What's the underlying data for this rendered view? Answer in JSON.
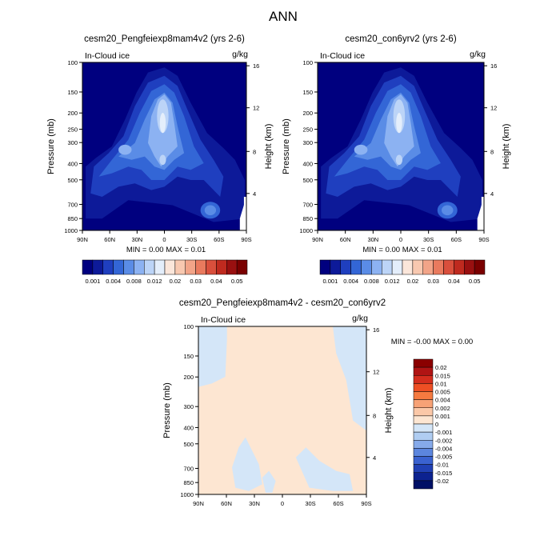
{
  "figure": {
    "title": "ANN"
  },
  "chart_data": [
    {
      "type": "heatmap",
      "title": "cesm20_Pengfeiexp8mam4v2 (yrs 2-6)",
      "variable": "In-Cloud ice",
      "units": "g/kg",
      "ylabel": "Pressure (mb)",
      "ylabel_right": "Height (km)",
      "xticks": [
        "90N",
        "60N",
        "30N",
        "0",
        "30S",
        "60S",
        "90S"
      ],
      "x_values": [
        90,
        60,
        30,
        0,
        -30,
        -60,
        -90
      ],
      "yticks": [
        "100",
        "150",
        "200",
        "250",
        "300",
        "400",
        "500",
        "700",
        "850",
        "1000"
      ],
      "y_values": [
        100,
        150,
        200,
        250,
        300,
        400,
        500,
        700,
        850,
        1000
      ],
      "height_ticks": [
        "16",
        "12",
        "8",
        "4"
      ],
      "min_label": "MIN =",
      "min_value": "0.00",
      "max_label": "MAX =",
      "max_value": "0.01",
      "colorbar_levels": [
        "0.001",
        "0.004",
        "0.008",
        "0.012",
        "0.02",
        "0.03",
        "0.04",
        "0.05"
      ]
    },
    {
      "type": "heatmap",
      "title": "cesm20_con6yrv2 (yrs 2-6)",
      "variable": "In-Cloud ice",
      "units": "g/kg",
      "ylabel": "Pressure (mb)",
      "ylabel_right": "Height (km)",
      "xticks": [
        "90N",
        "60N",
        "30N",
        "0",
        "30S",
        "60S",
        "90S"
      ],
      "x_values": [
        90,
        60,
        30,
        0,
        -30,
        -60,
        -90
      ],
      "yticks": [
        "100",
        "150",
        "200",
        "250",
        "300",
        "400",
        "500",
        "700",
        "850",
        "1000"
      ],
      "y_values": [
        100,
        150,
        200,
        250,
        300,
        400,
        500,
        700,
        850,
        1000
      ],
      "height_ticks": [
        "16",
        "12",
        "8",
        "4"
      ],
      "min_label": "MIN =",
      "min_value": "0.00",
      "max_label": "MAX =",
      "max_value": "0.01",
      "colorbar_levels": [
        "0.001",
        "0.004",
        "0.008",
        "0.012",
        "0.02",
        "0.03",
        "0.04",
        "0.05"
      ]
    },
    {
      "type": "heatmap",
      "title": "cesm20_Pengfeiexp8mam4v2 - cesm20_con6yrv2",
      "variable": "In-Cloud ice",
      "units": "g/kg",
      "ylabel": "Pressure (mb)",
      "ylabel_right": "Height (km)",
      "xticks": [
        "90N",
        "60N",
        "30N",
        "0",
        "30S",
        "60S",
        "90S"
      ],
      "x_values": [
        90,
        60,
        30,
        0,
        -30,
        -60,
        -90
      ],
      "yticks": [
        "100",
        "150",
        "200",
        "300",
        "400",
        "500",
        "700",
        "850",
        "1000"
      ],
      "y_values": [
        100,
        150,
        200,
        300,
        400,
        500,
        700,
        850,
        1000
      ],
      "height_ticks": [
        "16",
        "12",
        "8",
        "4"
      ],
      "min_label": "MIN =",
      "min_value": "-0.00",
      "max_label": "MAX =",
      "max_value": "0.00",
      "colorbar_levels": [
        "0.02",
        "0.015",
        "0.01",
        "0.005",
        "0.004",
        "0.002",
        "0.001",
        "0",
        "-0.001",
        "-0.002",
        "-0.004",
        "-0.005",
        "-0.01",
        "-0.015",
        "-0.02"
      ]
    }
  ],
  "colors": {
    "seq_colorbar": [
      "#00007f",
      "#0d1a99",
      "#1f3fbf",
      "#3366d6",
      "#5a8ce6",
      "#8cb2f2",
      "#bcd4f7",
      "#e4eefb",
      "#fbe6da",
      "#f8c8b0",
      "#f2a488",
      "#e97a5e",
      "#d94f3c",
      "#bf2a1f",
      "#991010",
      "#7a0000"
    ],
    "diff_colorbar": [
      "#8b0000",
      "#b01414",
      "#d42d1e",
      "#ee4f24",
      "#f57a40",
      "#f7a276",
      "#fbc8a8",
      "#fde6d2",
      "#d4e6f8",
      "#b0cdf2",
      "#86aaea",
      "#5c86de",
      "#3a62d0",
      "#2040b4",
      "#0c2290",
      "#001066"
    ],
    "field_background": "#00007f",
    "diff_background": "#fde6d2",
    "diff_negative": "#d4e6f8"
  }
}
